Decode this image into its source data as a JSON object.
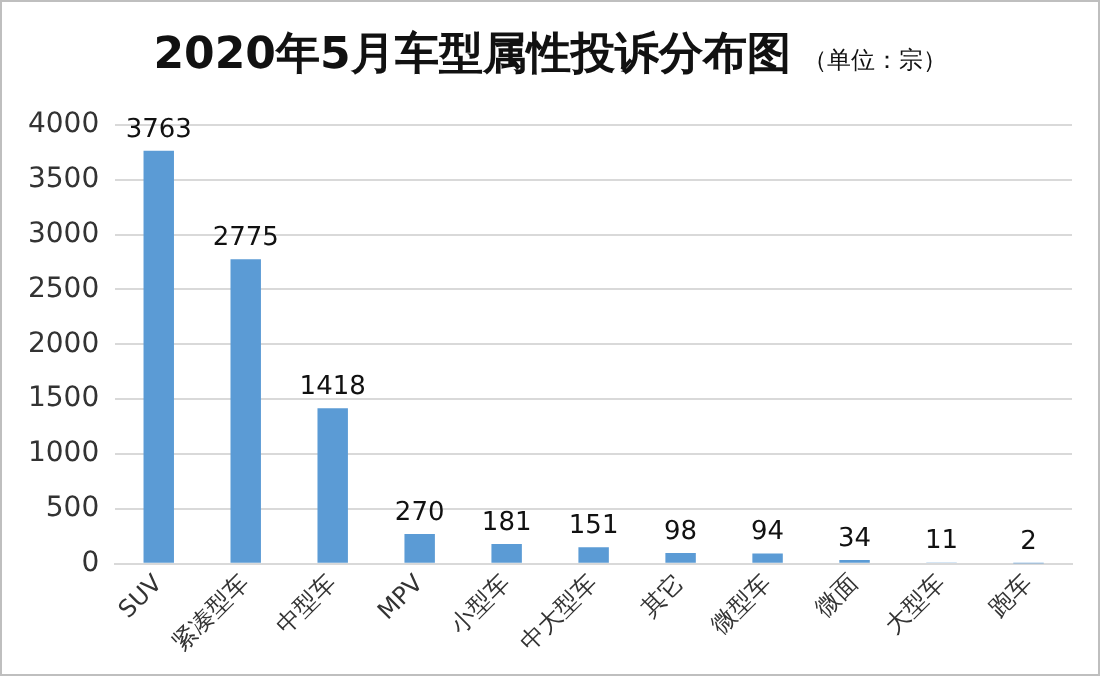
{
  "chart_data": {
    "type": "bar",
    "title": "2020年5月车型属性投诉分布图",
    "subtitle": "（单位：宗）",
    "categories": [
      "SUV",
      "紧凑型车",
      "中型车",
      "MPV",
      "小型车",
      "中大型车",
      "其它",
      "微型车",
      "微面",
      "大型车",
      "跑车"
    ],
    "values": [
      3763,
      2775,
      1418,
      270,
      181,
      151,
      98,
      94,
      34,
      11,
      2
    ],
    "color": "#5b9bd5",
    "ylim": [
      0,
      4000
    ],
    "yticks": [
      0,
      500,
      1000,
      1500,
      2000,
      2500,
      3000,
      3500,
      4000
    ],
    "grid": "y",
    "data_labels": true
  }
}
